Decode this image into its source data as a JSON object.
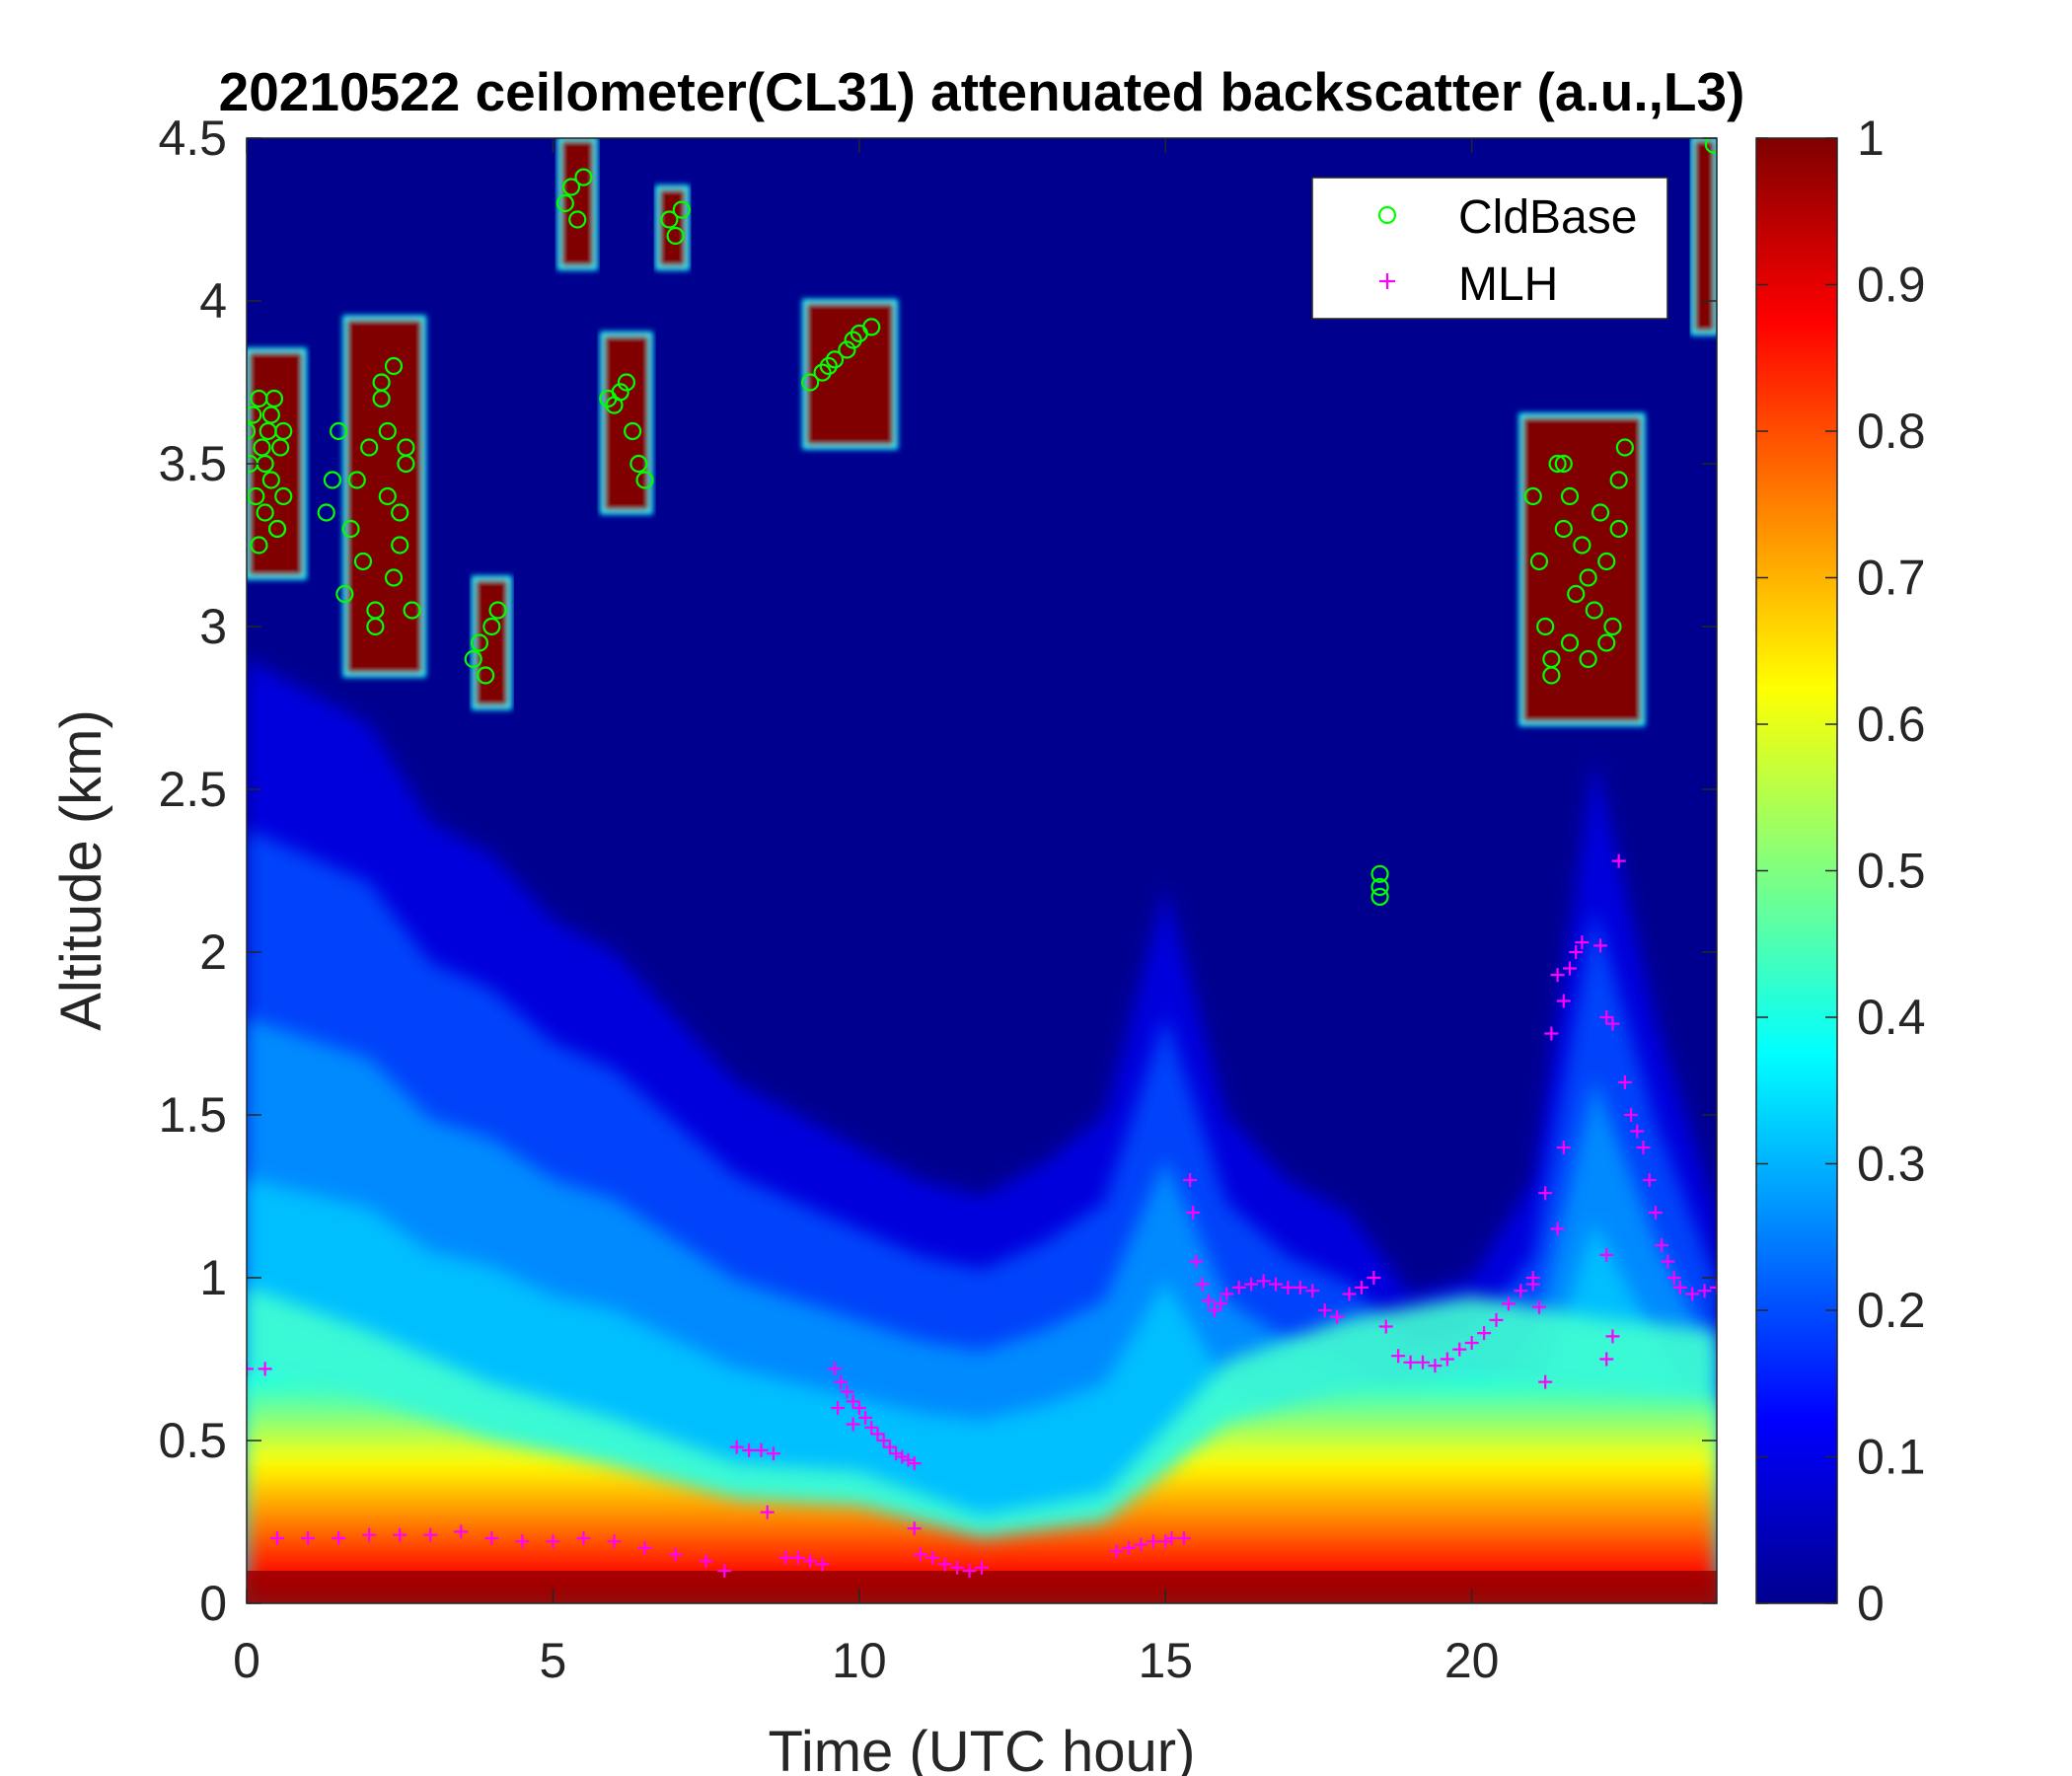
{
  "chart_data": {
    "type": "heatmap",
    "title": "20210522 ceilometer(CL31) attenuated backscatter (a.u.,L3)",
    "xlabel": "Time (UTC hour)",
    "ylabel": "Altitude (km)",
    "xlim": [
      0,
      24
    ],
    "ylim": [
      0,
      4.5
    ],
    "x_ticks": [
      0,
      5,
      10,
      15,
      20
    ],
    "x_tick_labels": [
      "0",
      "5",
      "10",
      "15",
      "20"
    ],
    "y_ticks": [
      0,
      0.5,
      1,
      1.5,
      2,
      2.5,
      3,
      3.5,
      4,
      4.5
    ],
    "y_tick_labels": [
      "0",
      "0.5",
      "1",
      "1.5",
      "2",
      "2.5",
      "3",
      "3.5",
      "4",
      "4.5"
    ],
    "colorbar": {
      "colormap": "jet",
      "range": [
        0,
        1
      ],
      "ticks": [
        0,
        0.1,
        0.2,
        0.3,
        0.4,
        0.5,
        0.6,
        0.7,
        0.8,
        0.9,
        1
      ],
      "tick_labels": [
        "0",
        "0.1",
        "0.2",
        "0.3",
        "0.4",
        "0.5",
        "0.6",
        "0.7",
        "0.8",
        "0.9",
        "1"
      ],
      "stops": [
        "#00008f",
        "#0000ff",
        "#0080ff",
        "#00ffff",
        "#80ff80",
        "#ffff00",
        "#ff8000",
        "#ff0000",
        "#800000"
      ]
    },
    "legend": {
      "position": "top-right",
      "entries": [
        {
          "label": "CldBase",
          "marker": "circle",
          "color": "#00ff00"
        },
        {
          "label": "MLH",
          "marker": "plus",
          "color": "#ff00ff"
        }
      ]
    },
    "backscatter_field": {
      "background_value": 0.02,
      "surface_layer_top_km": [
        [
          0,
          0.72
        ],
        [
          2,
          0.62
        ],
        [
          4,
          0.5
        ],
        [
          6,
          0.42
        ],
        [
          8,
          0.32
        ],
        [
          10,
          0.3
        ],
        [
          12,
          0.2
        ],
        [
          14,
          0.25
        ],
        [
          15,
          0.4
        ],
        [
          16,
          0.55
        ],
        [
          18,
          0.65
        ],
        [
          20,
          0.7
        ],
        [
          22,
          0.65
        ],
        [
          24,
          0.62
        ]
      ],
      "aerosol_top_km": [
        [
          0,
          2.9
        ],
        [
          1,
          2.8
        ],
        [
          2,
          2.7
        ],
        [
          3,
          2.4
        ],
        [
          4,
          2.3
        ],
        [
          5,
          2.1
        ],
        [
          6,
          2.0
        ],
        [
          7,
          1.8
        ],
        [
          8,
          1.6
        ],
        [
          9,
          1.5
        ],
        [
          10,
          1.4
        ],
        [
          11,
          1.3
        ],
        [
          12,
          1.25
        ],
        [
          13,
          1.35
        ],
        [
          14,
          1.5
        ],
        [
          15,
          2.2
        ],
        [
          16,
          1.5
        ],
        [
          17,
          1.3
        ],
        [
          18,
          1.2
        ],
        [
          19,
          0.95
        ],
        [
          20,
          1.0
        ],
        [
          21,
          1.3
        ],
        [
          22,
          2.6
        ],
        [
          23,
          1.8
        ],
        [
          24,
          1.2
        ]
      ],
      "cloud_blocks": [
        {
          "x0": 0.0,
          "x1": 0.95,
          "y0": 3.15,
          "y1": 3.85
        },
        {
          "x0": 1.6,
          "x1": 2.9,
          "y0": 2.85,
          "y1": 3.95
        },
        {
          "x0": 3.7,
          "x1": 4.3,
          "y0": 2.75,
          "y1": 3.15
        },
        {
          "x0": 5.1,
          "x1": 5.7,
          "y0": 4.1,
          "y1": 4.5
        },
        {
          "x0": 5.8,
          "x1": 6.6,
          "y0": 3.35,
          "y1": 3.9
        },
        {
          "x0": 6.7,
          "x1": 7.2,
          "y0": 4.1,
          "y1": 4.35
        },
        {
          "x0": 9.1,
          "x1": 10.6,
          "y0": 3.55,
          "y1": 4.0
        },
        {
          "x0": 20.8,
          "x1": 22.8,
          "y0": 2.7,
          "y1": 3.65
        },
        {
          "x0": 23.6,
          "x1": 24.0,
          "y0": 3.9,
          "y1": 4.5
        }
      ]
    },
    "series": [
      {
        "name": "CldBase",
        "marker": "circle",
        "x": [
          0.0,
          0.05,
          0.1,
          0.15,
          0.2,
          0.25,
          0.3,
          0.35,
          0.4,
          0.45,
          0.5,
          0.55,
          0.6,
          0.2,
          0.3,
          0.4,
          0.5,
          0.6,
          1.3,
          1.4,
          1.5,
          1.6,
          1.7,
          1.8,
          1.9,
          2.0,
          2.1,
          2.2,
          2.3,
          2.4,
          2.5,
          2.6,
          2.7,
          2.3,
          2.4,
          2.2,
          2.5,
          2.1,
          2.6,
          3.7,
          3.8,
          3.9,
          4.0,
          4.1,
          5.2,
          5.3,
          5.4,
          5.5,
          5.9,
          6.0,
          6.1,
          6.2,
          6.3,
          6.4,
          6.5,
          6.9,
          7.0,
          7.1,
          9.2,
          9.4,
          9.6,
          9.8,
          10.0,
          10.2,
          9.5,
          9.9,
          21.0,
          21.1,
          21.2,
          21.3,
          21.4,
          21.5,
          21.6,
          21.7,
          21.8,
          21.9,
          22.0,
          22.1,
          22.2,
          22.3,
          22.4,
          22.5,
          21.3,
          21.6,
          21.9,
          22.2,
          21.5,
          22.4,
          18.5,
          18.5,
          18.5,
          23.95
        ],
        "y": [
          3.6,
          3.5,
          3.65,
          3.4,
          3.7,
          3.55,
          3.35,
          3.6,
          3.45,
          3.7,
          3.3,
          3.55,
          3.4,
          3.25,
          3.5,
          3.65,
          3.3,
          3.6,
          3.35,
          3.45,
          3.6,
          3.1,
          3.3,
          3.45,
          3.2,
          3.55,
          3.05,
          3.7,
          3.4,
          3.8,
          3.25,
          3.5,
          3.05,
          3.6,
          3.15,
          3.75,
          3.35,
          3.0,
          3.55,
          2.9,
          2.95,
          2.85,
          3.0,
          3.05,
          4.3,
          4.35,
          4.25,
          4.38,
          3.7,
          3.68,
          3.72,
          3.75,
          3.6,
          3.5,
          3.45,
          4.25,
          4.2,
          4.28,
          3.75,
          3.78,
          3.82,
          3.85,
          3.9,
          3.92,
          3.8,
          3.88,
          3.4,
          3.2,
          3.0,
          2.9,
          3.5,
          3.3,
          2.95,
          3.1,
          3.25,
          2.9,
          3.05,
          3.35,
          3.2,
          3.0,
          3.45,
          3.55,
          2.85,
          3.4,
          3.15,
          2.95,
          3.5,
          3.3,
          2.2,
          2.17,
          2.24,
          4.48
        ]
      },
      {
        "name": "MLH",
        "marker": "plus",
        "x": [
          0.0,
          0.3,
          0.5,
          1.0,
          1.5,
          2.0,
          2.5,
          3.0,
          3.5,
          4.0,
          4.5,
          5.0,
          5.5,
          6.0,
          6.5,
          7.0,
          7.5,
          7.8,
          8.0,
          8.2,
          8.4,
          8.6,
          8.5,
          8.8,
          9.0,
          9.2,
          9.4,
          9.6,
          9.7,
          9.8,
          9.9,
          10.0,
          10.1,
          10.2,
          10.3,
          10.4,
          10.5,
          10.6,
          10.7,
          10.8,
          10.9,
          9.65,
          9.9,
          10.9,
          11.0,
          11.2,
          11.4,
          11.6,
          11.8,
          12.0,
          14.2,
          14.4,
          14.6,
          14.8,
          15.0,
          15.1,
          15.3,
          15.4,
          15.45,
          15.5,
          15.6,
          15.7,
          15.8,
          15.9,
          16.0,
          16.2,
          16.4,
          16.6,
          16.8,
          17.0,
          17.2,
          17.4,
          17.6,
          17.8,
          18.0,
          18.2,
          18.4,
          18.6,
          18.8,
          19.0,
          19.2,
          19.4,
          19.6,
          19.8,
          20.0,
          20.2,
          20.4,
          20.6,
          20.8,
          21.0,
          21.0,
          21.1,
          21.2,
          21.3,
          21.4,
          21.5,
          21.6,
          21.7,
          21.8,
          21.4,
          21.5,
          21.2,
          22.1,
          22.2,
          22.3,
          22.4,
          22.5,
          22.6,
          22.7,
          22.8,
          22.9,
          23.0,
          23.1,
          23.2,
          23.3,
          23.4,
          23.6,
          23.8,
          24.0,
          22.2,
          22.3,
          22.2
        ],
        "y": [
          0.72,
          0.72,
          0.2,
          0.2,
          0.2,
          0.21,
          0.21,
          0.21,
          0.22,
          0.2,
          0.19,
          0.19,
          0.2,
          0.19,
          0.17,
          0.15,
          0.13,
          0.1,
          0.48,
          0.47,
          0.47,
          0.46,
          0.28,
          0.14,
          0.14,
          0.13,
          0.12,
          0.72,
          0.68,
          0.65,
          0.62,
          0.6,
          0.57,
          0.54,
          0.52,
          0.5,
          0.48,
          0.46,
          0.45,
          0.44,
          0.43,
          0.6,
          0.55,
          0.23,
          0.15,
          0.14,
          0.12,
          0.11,
          0.1,
          0.11,
          0.16,
          0.17,
          0.18,
          0.19,
          0.19,
          0.2,
          0.2,
          1.3,
          1.2,
          1.05,
          0.98,
          0.93,
          0.9,
          0.92,
          0.95,
          0.97,
          0.98,
          0.99,
          0.98,
          0.97,
          0.97,
          0.96,
          0.9,
          0.88,
          0.95,
          0.97,
          1.0,
          0.85,
          0.76,
          0.74,
          0.74,
          0.73,
          0.75,
          0.78,
          0.8,
          0.83,
          0.87,
          0.92,
          0.96,
          0.98,
          1.0,
          0.91,
          0.68,
          1.75,
          1.93,
          1.85,
          1.95,
          2.0,
          2.03,
          1.15,
          1.4,
          1.26,
          2.02,
          1.8,
          1.78,
          2.28,
          1.6,
          1.5,
          1.45,
          1.4,
          1.3,
          1.2,
          1.1,
          1.05,
          1.0,
          0.97,
          0.95,
          0.96,
          0.97,
          1.07,
          0.82,
          0.75
        ]
      }
    ]
  }
}
